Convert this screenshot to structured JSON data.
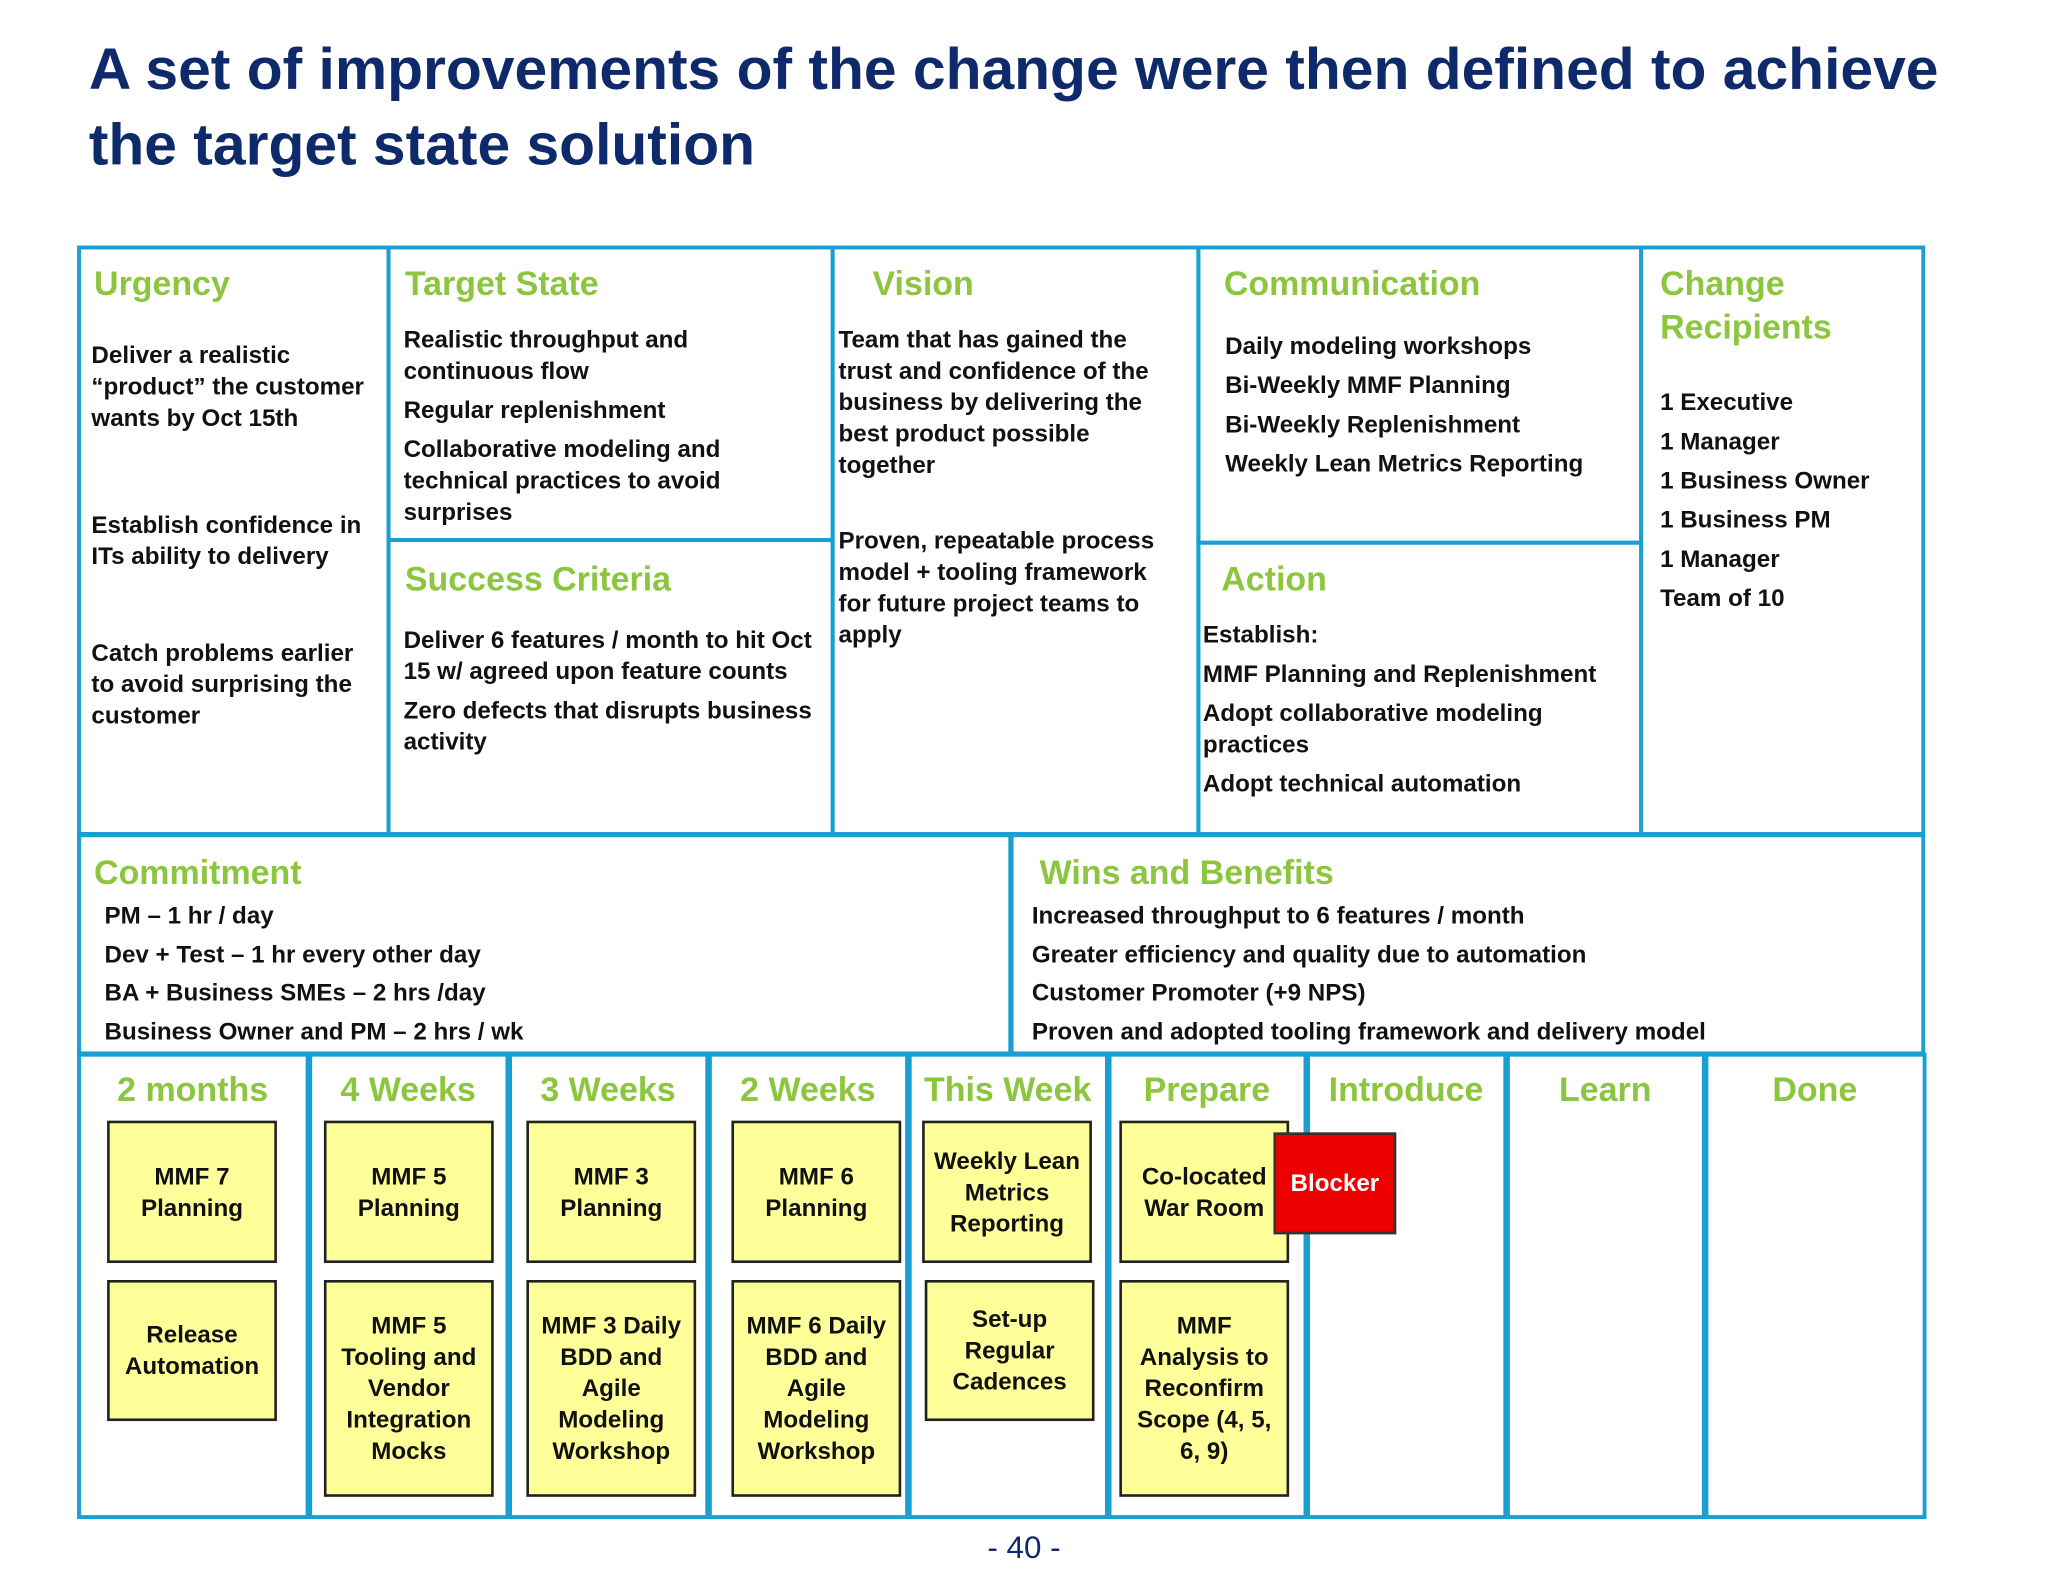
{
  "title": "A set of improvements of the change were then defined to achieve the target state solution",
  "sections": [
    {
      "heading": "Urgency",
      "items": [
        "Deliver a realistic “product” the customer wants by Oct 15th",
        "Establish confidence in ITs ability to delivery",
        "Catch problems earlier to avoid surprising the customer"
      ]
    },
    {
      "heading": "Target State",
      "items": [
        "Realistic throughput and continuous flow",
        "Regular replenishment",
        "Collaborative modeling and technical practices to avoid surprises"
      ]
    },
    {
      "heading": "Success Criteria",
      "items": [
        "Deliver 6 features / month  to hit Oct 15 w/ agreed upon feature counts",
        "Zero defects that disrupts business activity"
      ]
    },
    {
      "heading": "Vision",
      "items": [
        "Team that has gained the trust  and confidence of the business by delivering the best product possible together",
        "Proven, repeatable process model + tooling framework for future project teams to apply"
      ]
    },
    {
      "heading": "Communication",
      "items": [
        "Daily modeling workshops",
        "Bi-Weekly MMF Planning",
        "Bi-Weekly Replenishment",
        "Weekly Lean Metrics Reporting"
      ]
    },
    {
      "heading": "Action",
      "items": [
        "Establish:",
        "MMF Planning and Replenishment",
        "Adopt collaborative modeling practices",
        "Adopt technical automation"
      ]
    },
    {
      "heading": "Change Recipients",
      "items": [
        "1 Executive",
        "1 Manager",
        "1 Business Owner",
        "1 Business PM",
        "1 Manager",
        "Team of 10"
      ]
    },
    {
      "heading": "Commitment",
      "items": [
        "PM – 1 hr / day",
        "Dev + Test – 1 hr every other day",
        "BA + Business SMEs – 2 hrs /day",
        "Business Owner and PM – 2 hrs / wk"
      ]
    },
    {
      "heading": "Wins and Benefits",
      "items": [
        "Increased throughput to 6 features / month",
        "Greater efficiency and quality due to automation",
        "Customer Promoter (+9 NPS)",
        "Proven and adopted tooling framework and delivery model"
      ]
    }
  ],
  "board": [
    {
      "heading": "2 months",
      "cards": [
        "MMF 7 Planning",
        "Release Automation"
      ]
    },
    {
      "heading": "4 Weeks",
      "cards": [
        "MMF 5 Planning",
        "MMF 5 Tooling and Vendor Integration Mocks"
      ]
    },
    {
      "heading": "3 Weeks",
      "cards": [
        "MMF 3 Planning",
        "MMF 3 Daily BDD and Agile Modeling Workshop"
      ]
    },
    {
      "heading": "2 Weeks",
      "cards": [
        "MMF 6 Planning",
        "MMF 6 Daily BDD and Agile Modeling Workshop"
      ]
    },
    {
      "heading": "This Week",
      "cards": [
        "Weekly Lean Metrics Reporting",
        "Set-up Regular Cadences"
      ]
    },
    {
      "heading": "Prepare",
      "cards": [
        "Co-located War Room",
        "MMF Analysis to Reconfirm Scope (4, 5, 6, 9)"
      ]
    },
    {
      "heading": "Introduce",
      "cards": []
    },
    {
      "heading": "Learn",
      "cards": []
    },
    {
      "heading": "Done",
      "cards": []
    }
  ],
  "blocker": "Blocker",
  "page_number": "- 40 -"
}
